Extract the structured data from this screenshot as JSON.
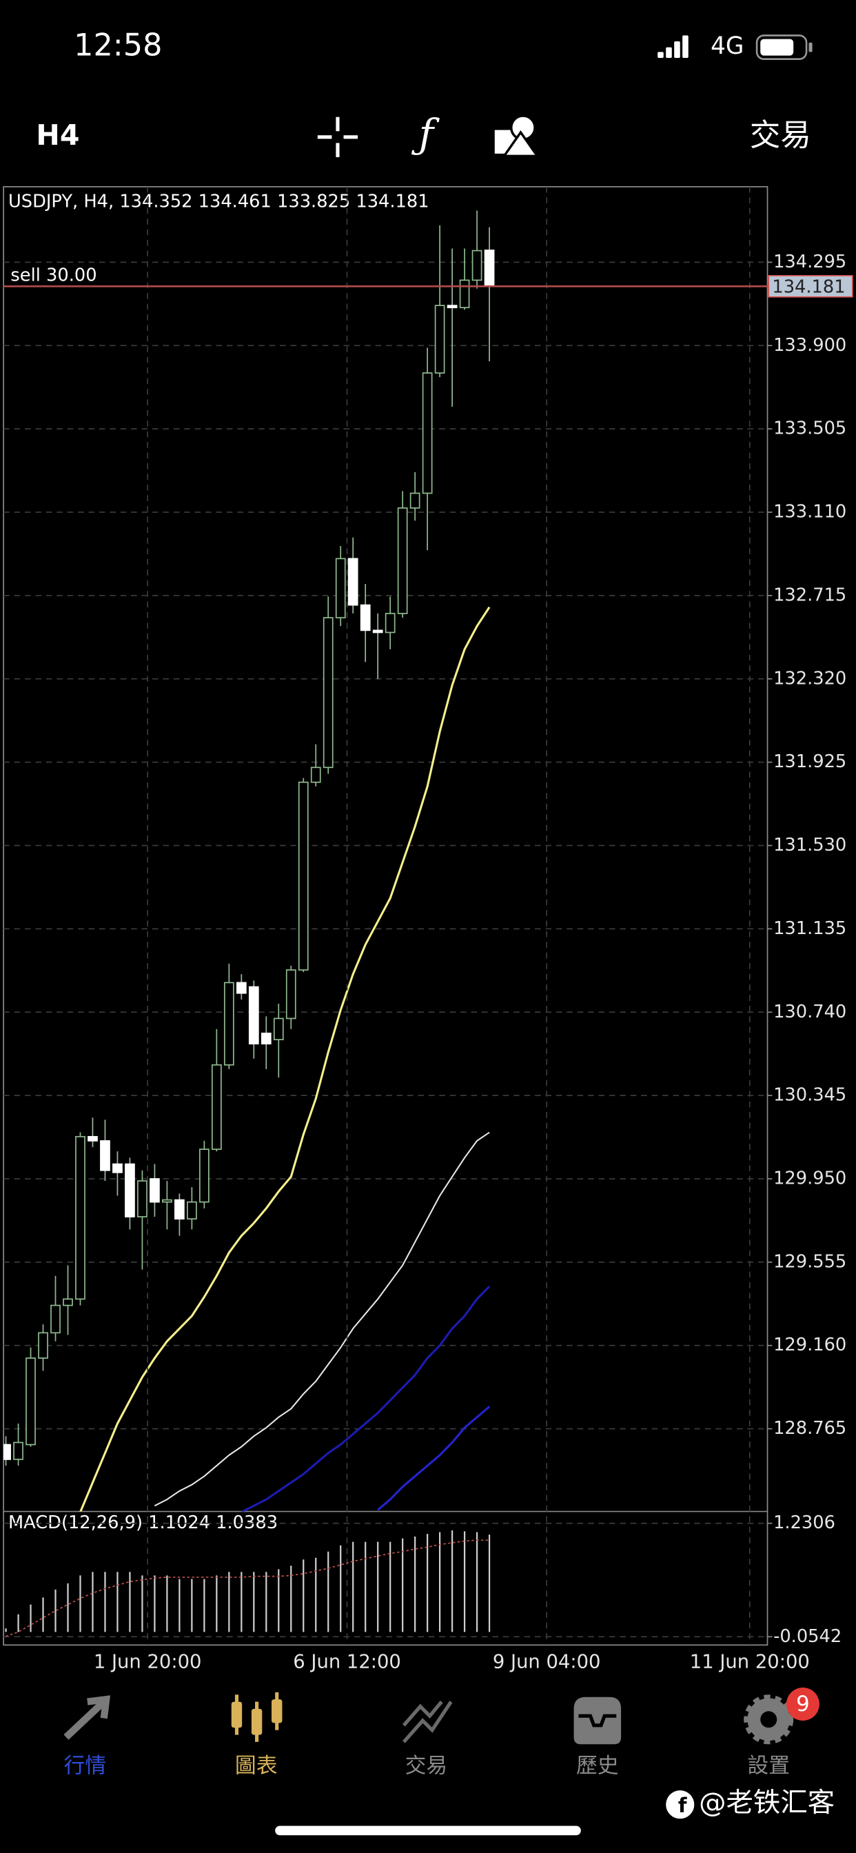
{
  "status_bar": {
    "time": "12:58",
    "network": "4G"
  },
  "toolbar": {
    "timeframe": "H4",
    "trade": "交易"
  },
  "chart_data": [
    {
      "type": "candlestick",
      "title": "USDJPY, H4, 134.352 134.461 133.825 134.181",
      "categories": [
        null,
        null,
        null,
        null,
        null,
        null,
        null,
        null,
        null,
        null,
        null,
        null,
        null,
        null,
        null,
        null,
        null,
        null,
        null,
        null,
        null,
        null,
        null,
        null,
        null,
        null,
        null,
        null,
        null,
        null,
        null,
        null,
        null,
        null,
        null,
        null,
        null,
        null,
        null,
        null
      ],
      "open": [
        128.69,
        128.62,
        128.69,
        129.1,
        129.22,
        129.35,
        129.38,
        130.15,
        130.13,
        130.02,
        130.02,
        129.77,
        129.95,
        129.84,
        129.85,
        129.76,
        129.84,
        130.09,
        130.49,
        130.88,
        130.86,
        130.64,
        130.61,
        130.71,
        130.94,
        131.83,
        131.9,
        132.61,
        132.89,
        132.67,
        132.55,
        132.54,
        132.63,
        133.13,
        133.2,
        133.77,
        134.09,
        134.08,
        134.21,
        134.352
      ],
      "high": [
        128.73,
        128.79,
        129.15,
        129.26,
        129.49,
        129.54,
        130.17,
        130.24,
        130.23,
        130.08,
        130.05,
        129.99,
        130.02,
        129.94,
        129.88,
        129.91,
        130.13,
        130.66,
        130.97,
        130.92,
        130.89,
        130.72,
        130.78,
        130.96,
        131.85,
        132.01,
        132.71,
        132.95,
        132.99,
        132.77,
        132.63,
        132.71,
        133.21,
        133.3,
        133.89,
        134.47,
        134.36,
        134.36,
        134.54,
        134.461
      ],
      "low": [
        128.59,
        128.59,
        128.68,
        129.04,
        129.18,
        129.21,
        129.35,
        130.1,
        129.94,
        129.87,
        129.71,
        129.52,
        129.77,
        129.71,
        129.68,
        129.71,
        129.81,
        130.08,
        130.47,
        130.8,
        130.52,
        130.47,
        130.43,
        130.66,
        130.93,
        131.81,
        131.87,
        132.57,
        132.63,
        132.4,
        132.32,
        132.46,
        132.61,
        133.07,
        132.93,
        133.75,
        133.61,
        134.07,
        134.17,
        133.825
      ],
      "close": [
        128.62,
        128.7,
        129.1,
        129.22,
        129.35,
        129.38,
        130.15,
        130.13,
        129.99,
        129.98,
        129.77,
        129.94,
        129.84,
        129.85,
        129.76,
        129.84,
        130.09,
        130.49,
        130.88,
        130.83,
        130.59,
        130.59,
        130.71,
        130.94,
        131.83,
        131.9,
        132.61,
        132.89,
        132.67,
        132.55,
        132.54,
        132.63,
        133.13,
        133.2,
        133.77,
        134.09,
        134.08,
        134.21,
        134.35,
        134.181
      ],
      "up_color": "#8fb98f",
      "down_color": "#ffffff",
      "lines": [
        {
          "color": "#f5f08c",
          "values": [
            null,
            null,
            null,
            null,
            null,
            null,
            128.37,
            128.51,
            128.65,
            128.79,
            128.9,
            129.01,
            129.1,
            129.18,
            129.24,
            129.3,
            129.39,
            129.49,
            129.6,
            129.68,
            129.74,
            129.81,
            129.89,
            129.96,
            130.16,
            130.33,
            130.55,
            130.75,
            130.92,
            131.06,
            131.17,
            131.28,
            131.45,
            131.62,
            131.81,
            132.07,
            132.29,
            132.46,
            132.57,
            132.66
          ]
        },
        {
          "color": "#e8e8e8",
          "values": [
            null,
            null,
            null,
            null,
            null,
            null,
            null,
            null,
            null,
            null,
            null,
            null,
            128.4,
            128.43,
            128.47,
            128.5,
            128.54,
            128.59,
            128.64,
            128.68,
            128.73,
            128.77,
            128.82,
            128.86,
            128.93,
            128.99,
            129.07,
            129.15,
            129.24,
            129.31,
            129.38,
            129.46,
            129.54,
            129.65,
            129.76,
            129.87,
            129.96,
            130.05,
            130.13,
            130.17
          ]
        },
        {
          "color": "#1c1cb4",
          "values": [
            null,
            null,
            null,
            null,
            null,
            null,
            null,
            null,
            null,
            null,
            null,
            null,
            null,
            null,
            null,
            null,
            null,
            null,
            null,
            128.37,
            128.4,
            128.43,
            128.47,
            128.51,
            128.55,
            128.6,
            128.65,
            128.69,
            128.74,
            128.79,
            128.84,
            128.9,
            128.96,
            129.02,
            129.1,
            129.16,
            129.24,
            129.3,
            129.38,
            129.44
          ]
        },
        {
          "color": "#2424d0",
          "values": [
            null,
            null,
            null,
            null,
            null,
            null,
            null,
            null,
            null,
            null,
            null,
            null,
            null,
            null,
            null,
            null,
            null,
            null,
            null,
            null,
            null,
            null,
            null,
            null,
            null,
            null,
            null,
            null,
            null,
            null,
            128.38,
            128.43,
            128.49,
            128.54,
            128.59,
            128.64,
            128.7,
            128.77,
            128.82,
            128.87
          ]
        }
      ],
      "ylim": [
        128.373,
        134.653
      ],
      "yticks": [
        134.295,
        {
          "value": 133.9,
          "label": "133.900"
        },
        133.505,
        {
          "value": 133.11,
          "label": "133.110"
        },
        132.715,
        {
          "value": 132.32,
          "label": "132.320"
        },
        131.925,
        {
          "value": 131.53,
          "label": "131.530"
        },
        131.135,
        {
          "value": 130.74,
          "label": "130.740"
        },
        130.345,
        {
          "value": 129.95,
          "label": "129.950"
        },
        129.555,
        {
          "value": 129.16,
          "label": "129.160"
        },
        128.765
      ],
      "xlim": [
        -0.19,
        61.43
      ],
      "xticks": [
        {
          "value": 11.43,
          "label": "1 Jun 20:00"
        },
        {
          "value": 27.52,
          "label": "6 Jun 12:00"
        },
        {
          "value": 43.62,
          "label": "9 Jun 04:00"
        },
        {
          "value": 60.0,
          "label": "11 Jun 20:00"
        }
      ],
      "grid": true,
      "order": {
        "label": "sell 30.00",
        "color": "#b34a4a",
        "price": {
          "value": 134.181,
          "label": "134.181"
        }
      }
    },
    {
      "type": "bar",
      "title": "MACD(12,26,9) 1.1024 1.0383",
      "values": [
        0.04,
        0.2,
        0.31,
        0.39,
        0.48,
        0.55,
        0.64,
        0.68,
        0.68,
        0.68,
        0.68,
        0.64,
        0.64,
        0.64,
        0.6,
        0.6,
        0.6,
        0.64,
        0.68,
        0.68,
        0.68,
        0.68,
        0.71,
        0.75,
        0.82,
        0.84,
        0.91,
        0.98,
        1.02,
        1.02,
        1.02,
        1.02,
        1.06,
        1.08,
        1.11,
        1.13,
        1.15,
        1.14,
        1.13,
        1.1024
      ],
      "signal": [
        -0.05,
        0.0,
        0.08,
        0.16,
        0.24,
        0.31,
        0.38,
        0.44,
        0.49,
        0.53,
        0.57,
        0.59,
        0.61,
        0.62,
        0.62,
        0.62,
        0.62,
        0.62,
        0.62,
        0.62,
        0.63,
        0.63,
        0.63,
        0.64,
        0.66,
        0.69,
        0.72,
        0.76,
        0.8,
        0.83,
        0.86,
        0.89,
        0.91,
        0.94,
        0.96,
        0.99,
        1.01,
        1.03,
        1.04,
        1.0383
      ],
      "color": "#cfcfcf",
      "signal_color": "#c0504d",
      "ylim": [
        -0.1479,
        1.3644
      ],
      "yticks": [
        1.2306,
        -0.0542
      ]
    }
  ],
  "tabs": [
    {
      "label": "行情",
      "color": "#2f4fd8"
    },
    {
      "label": "圖表",
      "color": "#d9b25a"
    },
    {
      "label": "交易",
      "color": "#8a8a8a"
    },
    {
      "label": "歷史",
      "color": "#8a8a8a"
    },
    {
      "label": "設置",
      "color": "#8a8a8a"
    }
  ],
  "badge": "9",
  "watermark": "@老铁汇客"
}
